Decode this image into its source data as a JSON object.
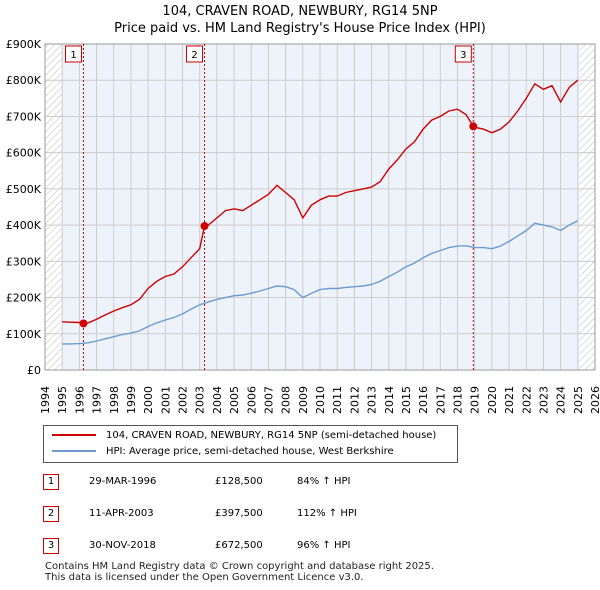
{
  "title_line1": "104, CRAVEN ROAD, NEWBURY, RG14 5NP",
  "title_line2": "Price paid vs. HM Land Registry's House Price Index (HPI)",
  "legend": {
    "property": "104, CRAVEN ROAD, NEWBURY, RG14 5NP (semi-detached house)",
    "hpi": "HPI: Average price, semi-detached house, West Berkshire"
  },
  "sales": [
    {
      "num": "1",
      "date": "29-MAR-1996",
      "price": "£128,500",
      "hpi": "84% ↑ HPI"
    },
    {
      "num": "2",
      "date": "11-APR-2003",
      "price": "£397,500",
      "hpi": "112% ↑ HPI"
    },
    {
      "num": "3",
      "date": "30-NOV-2018",
      "price": "£672,500",
      "hpi": "96% ↑ HPI"
    }
  ],
  "footer": {
    "line1": "Contains HM Land Registry data © Crown copyright and database right 2025.",
    "line2": "This data is licensed under the Open Government Licence v3.0."
  },
  "colors": {
    "property": "#cc0000",
    "hpi": "#6b9bd1",
    "grid": "#cccccc",
    "bg": "#eef3fb"
  },
  "chart_data": {
    "type": "line",
    "xlim": [
      1994,
      2026
    ],
    "ylim": [
      0,
      900000
    ],
    "x_ticks": [
      "1994",
      "1995",
      "1996",
      "1997",
      "1998",
      "1999",
      "2000",
      "2001",
      "2002",
      "2003",
      "2004",
      "2005",
      "2006",
      "2007",
      "2008",
      "2009",
      "2010",
      "2011",
      "2012",
      "2013",
      "2014",
      "2015",
      "2016",
      "2017",
      "2018",
      "2019",
      "2020",
      "2021",
      "2022",
      "2023",
      "2024",
      "2025",
      "2026"
    ],
    "y_ticks": [
      {
        "value": 0,
        "label": "£0"
      },
      {
        "value": 100000,
        "label": "£100K"
      },
      {
        "value": 200000,
        "label": "£200K"
      },
      {
        "value": 300000,
        "label": "£300K"
      },
      {
        "value": 400000,
        "label": "£400K"
      },
      {
        "value": 500000,
        "label": "£500K"
      },
      {
        "value": 600000,
        "label": "£600K"
      },
      {
        "value": 700000,
        "label": "£700K"
      },
      {
        "value": 800000,
        "label": "£800K"
      },
      {
        "value": 900000,
        "label": "£900K"
      }
    ],
    "data_range": [
      1995.0,
      2025.1
    ],
    "markers": [
      {
        "num": "1",
        "x": 1996.24,
        "y": 128500
      },
      {
        "num": "2",
        "x": 2003.28,
        "y": 397500
      },
      {
        "num": "3",
        "x": 2018.92,
        "y": 672500
      }
    ],
    "series": [
      {
        "name": "104, CRAVEN ROAD, NEWBURY, RG14 5NP (semi-detached house)",
        "points": [
          [
            1995,
            133000
          ],
          [
            1995.5,
            132000
          ],
          [
            1996,
            131000
          ],
          [
            1996.24,
            128500
          ],
          [
            1996.5,
            130000
          ],
          [
            1997,
            140000
          ],
          [
            1997.5,
            152000
          ],
          [
            1998,
            163000
          ],
          [
            1998.5,
            172000
          ],
          [
            1999,
            180000
          ],
          [
            1999.5,
            195000
          ],
          [
            2000,
            225000
          ],
          [
            2000.5,
            245000
          ],
          [
            2001,
            258000
          ],
          [
            2001.5,
            265000
          ],
          [
            2002,
            285000
          ],
          [
            2002.5,
            310000
          ],
          [
            2003,
            335000
          ],
          [
            2003.28,
            397500
          ],
          [
            2003.5,
            400000
          ],
          [
            2004,
            420000
          ],
          [
            2004.5,
            440000
          ],
          [
            2005,
            445000
          ],
          [
            2005.5,
            440000
          ],
          [
            2006,
            455000
          ],
          [
            2006.5,
            470000
          ],
          [
            2007,
            485000
          ],
          [
            2007.5,
            510000
          ],
          [
            2008,
            490000
          ],
          [
            2008.5,
            470000
          ],
          [
            2009,
            420000
          ],
          [
            2009.5,
            455000
          ],
          [
            2010,
            470000
          ],
          [
            2010.5,
            480000
          ],
          [
            2011,
            480000
          ],
          [
            2011.5,
            490000
          ],
          [
            2012,
            495000
          ],
          [
            2012.5,
            500000
          ],
          [
            2013,
            505000
          ],
          [
            2013.5,
            520000
          ],
          [
            2014,
            555000
          ],
          [
            2014.5,
            580000
          ],
          [
            2015,
            610000
          ],
          [
            2015.5,
            630000
          ],
          [
            2016,
            665000
          ],
          [
            2016.5,
            690000
          ],
          [
            2017,
            700000
          ],
          [
            2017.5,
            715000
          ],
          [
            2018,
            720000
          ],
          [
            2018.5,
            705000
          ],
          [
            2018.92,
            672500
          ],
          [
            2019,
            670000
          ],
          [
            2019.5,
            665000
          ],
          [
            2020,
            655000
          ],
          [
            2020.5,
            665000
          ],
          [
            2021,
            685000
          ],
          [
            2021.5,
            715000
          ],
          [
            2022,
            750000
          ],
          [
            2022.5,
            790000
          ],
          [
            2023,
            775000
          ],
          [
            2023.5,
            785000
          ],
          [
            2024,
            740000
          ],
          [
            2024.5,
            780000
          ],
          [
            2025,
            800000
          ]
        ]
      },
      {
        "name": "HPI: Average price, semi-detached house, West Berkshire",
        "points": [
          [
            1995,
            72000
          ],
          [
            1995.5,
            72000
          ],
          [
            1996,
            73000
          ],
          [
            1996.5,
            75000
          ],
          [
            1997,
            80000
          ],
          [
            1997.5,
            86000
          ],
          [
            1998,
            92000
          ],
          [
            1998.5,
            98000
          ],
          [
            1999,
            102000
          ],
          [
            1999.5,
            108000
          ],
          [
            2000,
            120000
          ],
          [
            2000.5,
            130000
          ],
          [
            2001,
            138000
          ],
          [
            2001.5,
            145000
          ],
          [
            2002,
            155000
          ],
          [
            2002.5,
            168000
          ],
          [
            2003,
            180000
          ],
          [
            2003.5,
            188000
          ],
          [
            2004,
            195000
          ],
          [
            2004.5,
            200000
          ],
          [
            2005,
            205000
          ],
          [
            2005.5,
            207000
          ],
          [
            2006,
            212000
          ],
          [
            2006.5,
            218000
          ],
          [
            2007,
            225000
          ],
          [
            2007.5,
            232000
          ],
          [
            2008,
            230000
          ],
          [
            2008.5,
            222000
          ],
          [
            2009,
            200000
          ],
          [
            2009.5,
            212000
          ],
          [
            2010,
            222000
          ],
          [
            2010.5,
            225000
          ],
          [
            2011,
            225000
          ],
          [
            2011.5,
            228000
          ],
          [
            2012,
            230000
          ],
          [
            2012.5,
            232000
          ],
          [
            2013,
            236000
          ],
          [
            2013.5,
            245000
          ],
          [
            2014,
            258000
          ],
          [
            2014.5,
            270000
          ],
          [
            2015,
            285000
          ],
          [
            2015.5,
            295000
          ],
          [
            2016,
            310000
          ],
          [
            2016.5,
            322000
          ],
          [
            2017,
            330000
          ],
          [
            2017.5,
            338000
          ],
          [
            2018,
            342000
          ],
          [
            2018.5,
            343000
          ],
          [
            2019,
            338000
          ],
          [
            2019.5,
            338000
          ],
          [
            2020,
            335000
          ],
          [
            2020.5,
            342000
          ],
          [
            2021,
            355000
          ],
          [
            2021.5,
            370000
          ],
          [
            2022,
            385000
          ],
          [
            2022.5,
            405000
          ],
          [
            2023,
            400000
          ],
          [
            2023.5,
            395000
          ],
          [
            2024,
            385000
          ],
          [
            2024.5,
            400000
          ],
          [
            2025,
            412000
          ]
        ]
      }
    ]
  }
}
